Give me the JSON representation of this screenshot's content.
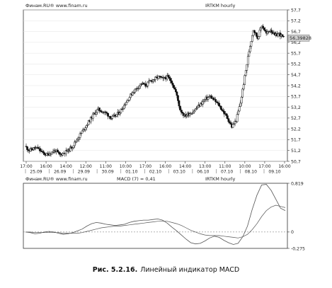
{
  "caption": {
    "number": "Рис. 5.2.16.",
    "text": "Линейный индикатор MACD"
  },
  "chart_data": [
    {
      "type": "candlestick",
      "source_label": "Финам.RU® www.finam.ru",
      "symbol_label": "IRTKM hourly",
      "last_price_label": "56,39828",
      "last_price": 56.4,
      "ylim": [
        50.7,
        57.7
      ],
      "y_ticks": [
        "57,7",
        "57,2",
        "56,7",
        "56,2",
        "55,7",
        "55,2",
        "54,7",
        "54,2",
        "53,7",
        "53,2",
        "52,7",
        "52,2",
        "51,7",
        "51,2",
        "50,7"
      ],
      "x_time_ticks": [
        "17:00",
        "16:00",
        "14:00",
        "12:00",
        "11:00",
        "10:00",
        "17:00",
        "16:00",
        "14:00",
        "13:00",
        "11:00",
        "10:00",
        "17:00",
        "16:00"
      ],
      "x_date_ticks": [
        "25.09",
        "26.09",
        "29.09",
        "30.09",
        "01.10",
        "02.10",
        "03.10",
        "06.10",
        "07.10",
        "08.10",
        "09.10"
      ],
      "close_path": [
        51.4,
        51.2,
        51.3,
        51.3,
        51.1,
        51.0,
        51.1,
        51.2,
        51.0,
        51.1,
        51.2,
        51.4,
        51.7,
        52.0,
        52.3,
        52.6,
        52.9,
        53.1,
        53.0,
        52.9,
        52.7,
        52.8,
        53.0,
        53.3,
        53.6,
        53.9,
        54.1,
        54.3,
        54.2,
        54.4,
        54.5,
        54.6,
        54.5,
        54.6,
        54.4,
        53.9,
        53.1,
        52.8,
        52.9,
        53.0,
        53.2,
        53.4,
        53.6,
        53.7,
        53.5,
        53.3,
        53.0,
        52.7,
        52.3,
        52.6,
        53.4,
        54.6,
        55.8,
        56.8,
        56.4,
        57.0,
        56.6,
        56.8,
        56.5,
        56.6,
        56.4
      ]
    },
    {
      "type": "line",
      "source_label": "Финам.RU® www.finam.ru",
      "indicator_label": "MACD (7) = 0,41",
      "symbol_label": "IRTKM hourly",
      "y_ticks": [
        "0,819",
        "0",
        "-0,275"
      ],
      "ylim": [
        -0.275,
        0.819
      ],
      "series": [
        {
          "color": "#555555",
          "values": [
            0.0,
            -0.01,
            -0.03,
            -0.02,
            0.0,
            0.01,
            0.0,
            -0.02,
            -0.04,
            -0.03,
            -0.01,
            0.02,
            0.05,
            0.1,
            0.14,
            0.16,
            0.15,
            0.13,
            0.12,
            0.11,
            0.12,
            0.13,
            0.16,
            0.18,
            0.19,
            0.2,
            0.2,
            0.21,
            0.22,
            0.2,
            0.15,
            0.08,
            0.02,
            -0.05,
            -0.12,
            -0.18,
            -0.2,
            -0.19,
            -0.15,
            -0.1,
            -0.07,
            -0.09,
            -0.14,
            -0.18,
            -0.21,
            -0.19,
            -0.08,
            0.1,
            0.38,
            0.62,
            0.79,
            0.8,
            0.7,
            0.55,
            0.4,
            0.36
          ]
        },
        {
          "color": "#555555",
          "values": [
            0.0,
            0.0,
            -0.01,
            -0.01,
            -0.01,
            -0.01,
            -0.01,
            -0.01,
            -0.02,
            -0.02,
            -0.02,
            -0.02,
            -0.01,
            0.01,
            0.03,
            0.05,
            0.07,
            0.08,
            0.09,
            0.1,
            0.1,
            0.11,
            0.12,
            0.13,
            0.14,
            0.15,
            0.16,
            0.17,
            0.18,
            0.18,
            0.18,
            0.16,
            0.14,
            0.11,
            0.07,
            0.03,
            0.0,
            -0.03,
            -0.05,
            -0.06,
            -0.06,
            -0.06,
            -0.07,
            -0.08,
            -0.09,
            -0.1,
            -0.08,
            -0.04,
            0.04,
            0.14,
            0.26,
            0.36,
            0.42,
            0.45,
            0.43,
            0.41
          ]
        }
      ]
    }
  ]
}
